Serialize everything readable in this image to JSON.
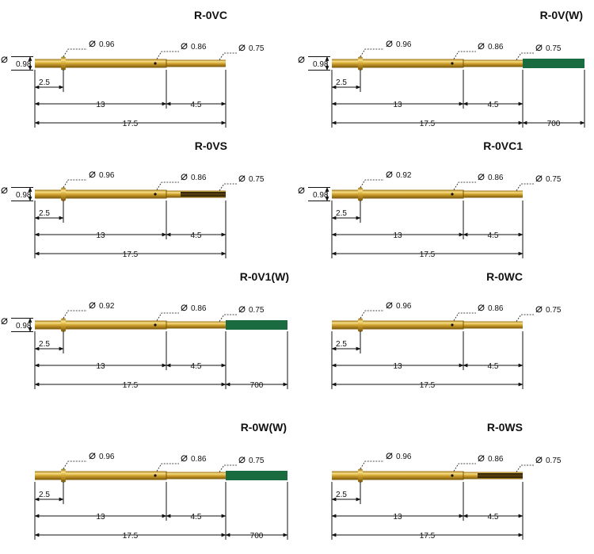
{
  "diagrams": [
    {
      "title": "R-0VC",
      "d_left": "0.98",
      "d_a": "0.96",
      "d_b": "0.86",
      "d_c": "0.75",
      "len_a": "2.5",
      "len_b": "13",
      "len_c": "4.5",
      "len_total": "17.5",
      "wire": null,
      "wire_len": null,
      "tip": "plain",
      "show_left": true
    },
    {
      "title": "R-0V(W)",
      "d_left": "0.98",
      "d_a": "0.96",
      "d_b": "0.86",
      "d_c": "0.75",
      "len_a": "2.5",
      "len_b": "13",
      "len_c": "4.5",
      "len_total": "17.5",
      "wire": "#1a6b3f",
      "wire_len": "700",
      "tip": "wire",
      "show_left": true
    },
    {
      "title": "R-0VS",
      "d_left": "0.98",
      "d_a": "0.96",
      "d_b": "0.86",
      "d_c": "0.75",
      "len_a": "2.5",
      "len_b": "13",
      "len_c": "4.5",
      "len_total": "17.5",
      "wire": null,
      "wire_len": null,
      "tip": "slot",
      "show_left": true
    },
    {
      "title": "R-0VC1",
      "d_left": "0.98",
      "d_a": "0.92",
      "d_b": "0.86",
      "d_c": "0.75",
      "len_a": "2.5",
      "len_b": "13",
      "len_c": "4.5",
      "len_total": "17.5",
      "wire": null,
      "wire_len": null,
      "tip": "plain",
      "show_left": true
    },
    {
      "title": "R-0V1(W)",
      "d_left": "0.98",
      "d_a": "0.92",
      "d_b": "0.86",
      "d_c": "0.75",
      "len_a": "2.5",
      "len_b": "13",
      "len_c": "4.5",
      "len_total": "17.5",
      "wire": "#1a6b3f",
      "wire_len": "700",
      "tip": "wire",
      "show_left": true
    },
    {
      "title": "R-0WC",
      "d_left": "",
      "d_a": "0.96",
      "d_b": "0.86",
      "d_c": "0.75",
      "len_a": "2.5",
      "len_b": "13",
      "len_c": "4.5",
      "len_total": "17.5",
      "wire": null,
      "wire_len": null,
      "tip": "plain",
      "show_left": false
    },
    {
      "title": "R-0W(W)",
      "d_left": "",
      "d_a": "0.96",
      "d_b": "0.86",
      "d_c": "0.75",
      "len_a": "2.5",
      "len_b": "13",
      "len_c": "4.5",
      "len_total": "17.5",
      "wire": "#1a6b3f",
      "wire_len": "700",
      "tip": "wire",
      "show_left": false
    },
    {
      "title": "R-0WS",
      "d_left": "",
      "d_a": "0.96",
      "d_b": "0.86",
      "d_c": "0.75",
      "len_a": "2.5",
      "len_b": "13",
      "len_c": "4.5",
      "len_total": "17.5",
      "wire": null,
      "wire_len": null,
      "tip": "slot",
      "show_left": false
    }
  ],
  "diameter_symbol": "⌀",
  "colors": {
    "brass": "#c9992a",
    "brass_light": "#f6d877",
    "brass_dark": "#8a6412",
    "line": "#111111",
    "wire": "#1a6b3f"
  }
}
